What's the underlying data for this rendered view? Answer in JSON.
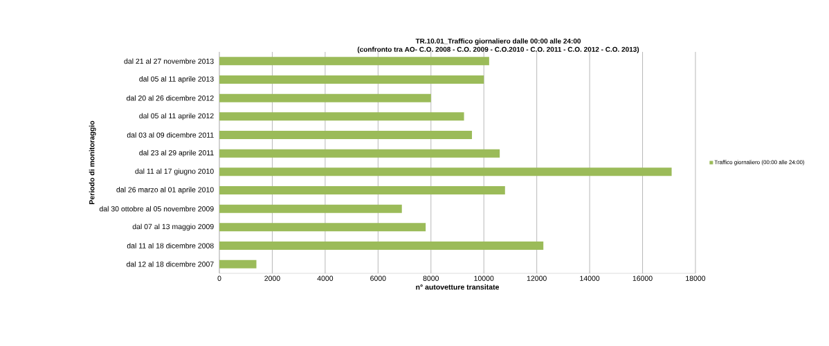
{
  "chart_data": {
    "type": "bar",
    "orientation": "horizontal",
    "title": "TR.10.01_Traffico giornaliero dalle 00:00 alle 24:00",
    "subtitle": "(confronto tra AO- C.O. 2008 - C.O. 2009 - C.O.2010 - C.O. 2011 - C.O. 2012 - C.O. 2013)",
    "xlabel": "n° autovetture transitate",
    "ylabel": "Periodo di monitoraggio",
    "categories": [
      "dal 21 al 27 novembre 2013",
      "dal 05 al 11 aprile 2013",
      "dal 20 al 26 dicembre 2012",
      "dal 05 al 11 aprile 2012",
      "dal 03 al 09 dicembre 2011",
      "dal 23 al 29 aprile 2011",
      "dal 11 al 17 giugno 2010",
      "dal 26 marzo al 01 aprile 2010",
      "dal 30 ottobre al 05 novembre 2009",
      "dal 07 al 13 maggio 2009",
      "dal 11 al 18 dicembre 2008",
      "dal 12 al 18 dicembre 2007"
    ],
    "series": [
      {
        "name": "Traffico giornaliero (00:00 alle 24:00)",
        "color": "#9bbb59",
        "values": [
          10200,
          10000,
          8000,
          9250,
          9550,
          10600,
          17100,
          10800,
          6900,
          7800,
          12250,
          1400
        ]
      }
    ],
    "xlim": [
      0,
      18000
    ],
    "xticks": [
      0,
      2000,
      4000,
      6000,
      8000,
      10000,
      12000,
      14000,
      16000,
      18000
    ],
    "grid": "x",
    "legend": "right"
  }
}
